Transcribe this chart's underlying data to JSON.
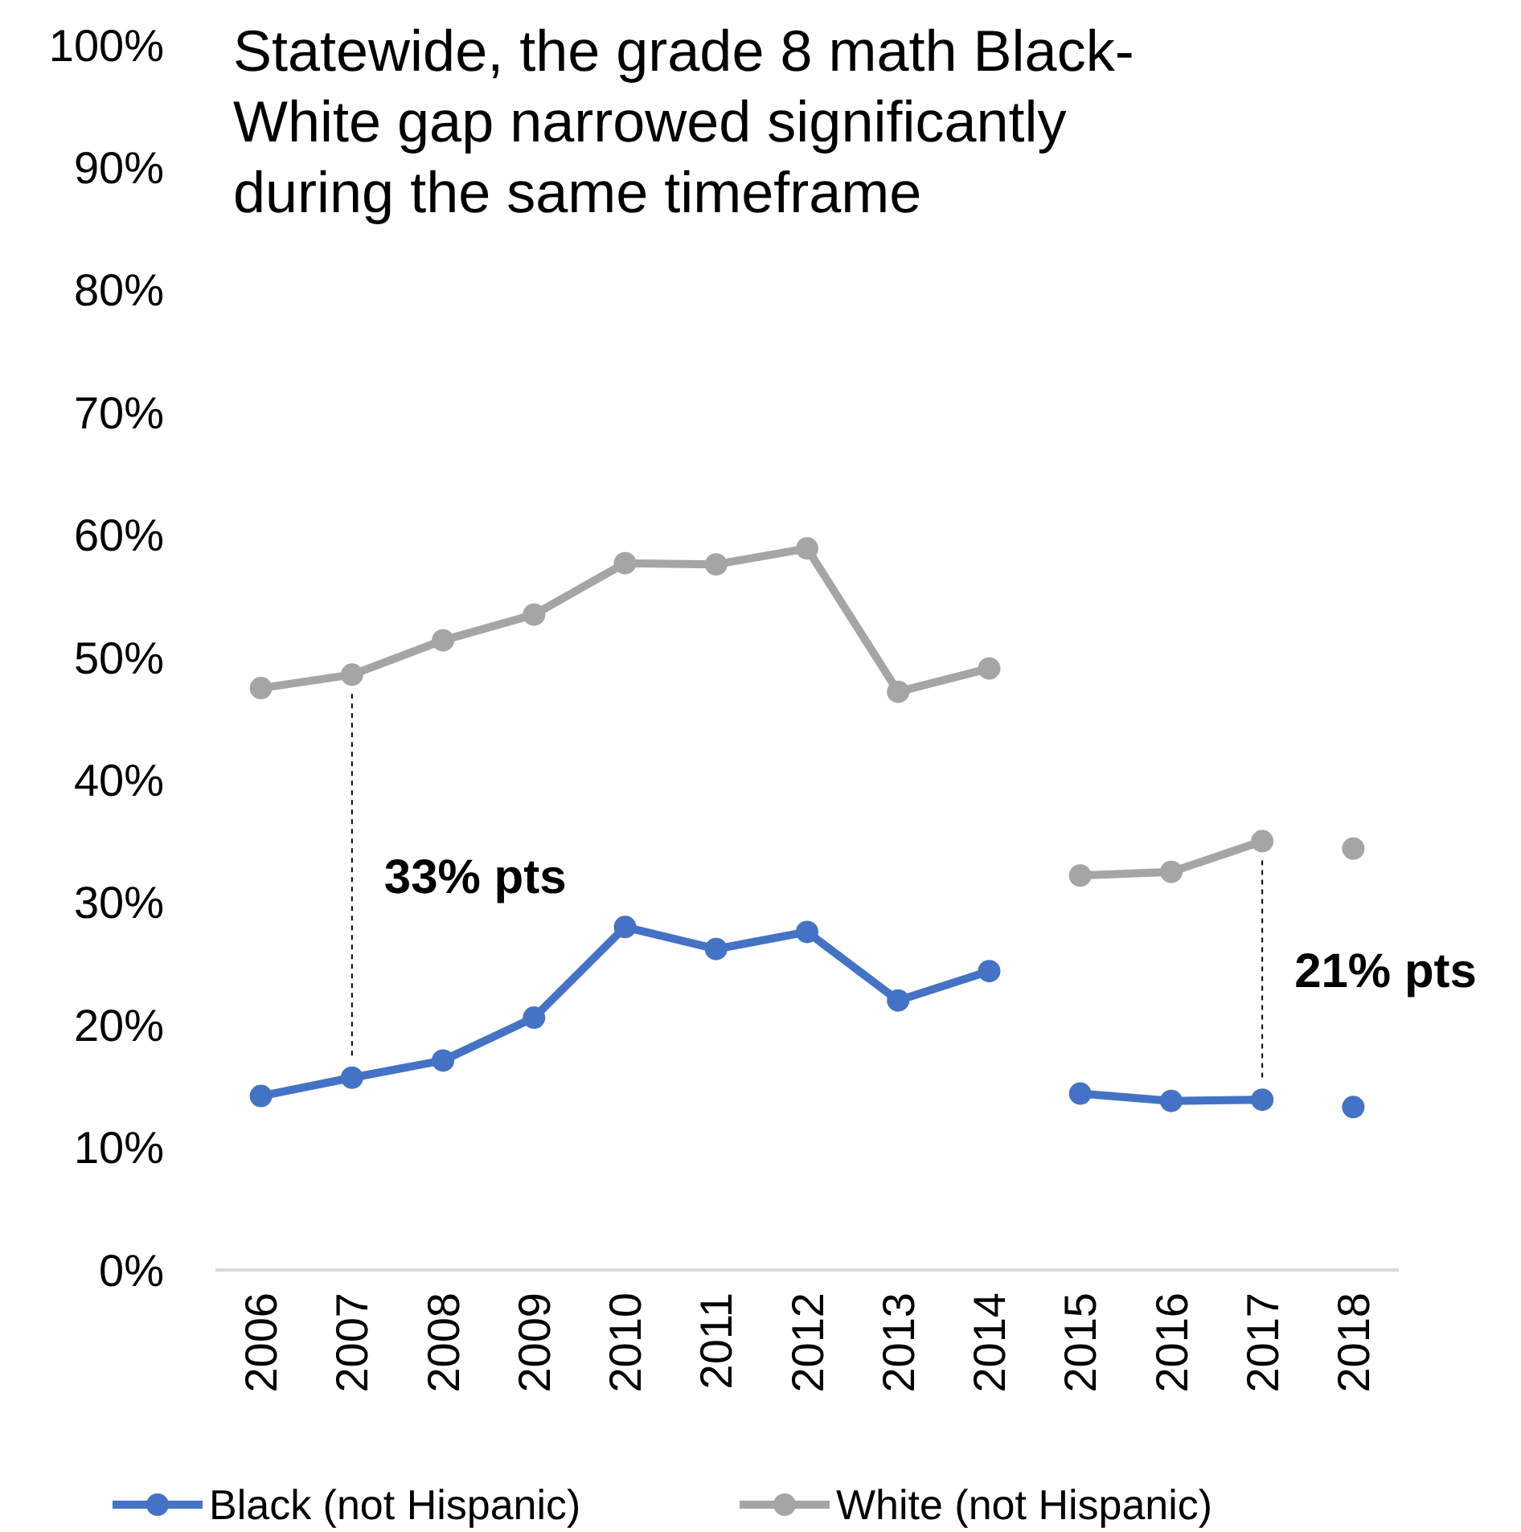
{
  "chart_data": {
    "type": "line",
    "title": "Statewide, the grade 8 math Black-White gap narrowed significantly during the same timeframe",
    "categories": [
      "2006",
      "2007",
      "2008",
      "2009",
      "2010",
      "2011",
      "2012",
      "2013",
      "2014",
      "2015",
      "2016",
      "2017",
      "2018"
    ],
    "series": [
      {
        "name": "Black (not Hispanic)",
        "color": "#4472c4",
        "values": [
          14.2,
          15.7,
          17.1,
          20.6,
          28.0,
          26.2,
          27.6,
          22.0,
          24.4,
          null,
          null,
          null,
          null
        ]
      },
      {
        "color": "#4472c4",
        "values": [
          null,
          null,
          null,
          null,
          null,
          null,
          null,
          null,
          null,
          14.4,
          13.8,
          13.9,
          null
        ]
      },
      {
        "color": "#4472c4",
        "values": [
          null,
          null,
          null,
          null,
          null,
          null,
          null,
          null,
          null,
          null,
          null,
          null,
          13.3
        ]
      },
      {
        "name": "White (not Hispanic)",
        "color": "#a5a5a5",
        "values": [
          47.5,
          48.6,
          51.4,
          53.5,
          57.7,
          57.6,
          58.9,
          47.2,
          49.1,
          null,
          null,
          null,
          null
        ]
      },
      {
        "color": "#a5a5a5",
        "values": [
          null,
          null,
          null,
          null,
          null,
          null,
          null,
          null,
          null,
          32.2,
          32.5,
          35.0,
          null
        ]
      },
      {
        "color": "#a5a5a5",
        "values": [
          null,
          null,
          null,
          null,
          null,
          null,
          null,
          null,
          null,
          null,
          null,
          null,
          34.4
        ]
      }
    ],
    "ylim": [
      0,
      100
    ],
    "yticks": [
      {
        "value": 0,
        "label": "0%"
      },
      {
        "value": 10,
        "label": "10%"
      },
      {
        "value": 20,
        "label": "20%"
      },
      {
        "value": 30,
        "label": "30%"
      },
      {
        "value": 40,
        "label": "40%"
      },
      {
        "value": 50,
        "label": "50%"
      },
      {
        "value": 60,
        "label": "60%"
      },
      {
        "value": 70,
        "label": "70%"
      },
      {
        "value": 80,
        "label": "80%"
      },
      {
        "value": 90,
        "label": "90%"
      },
      {
        "value": 100,
        "label": "100%"
      }
    ],
    "annotations": [
      "33% pts",
      "21% pts"
    ],
    "grid": false,
    "legend": "bottom",
    "marker": "circle",
    "line_style": "solid"
  }
}
